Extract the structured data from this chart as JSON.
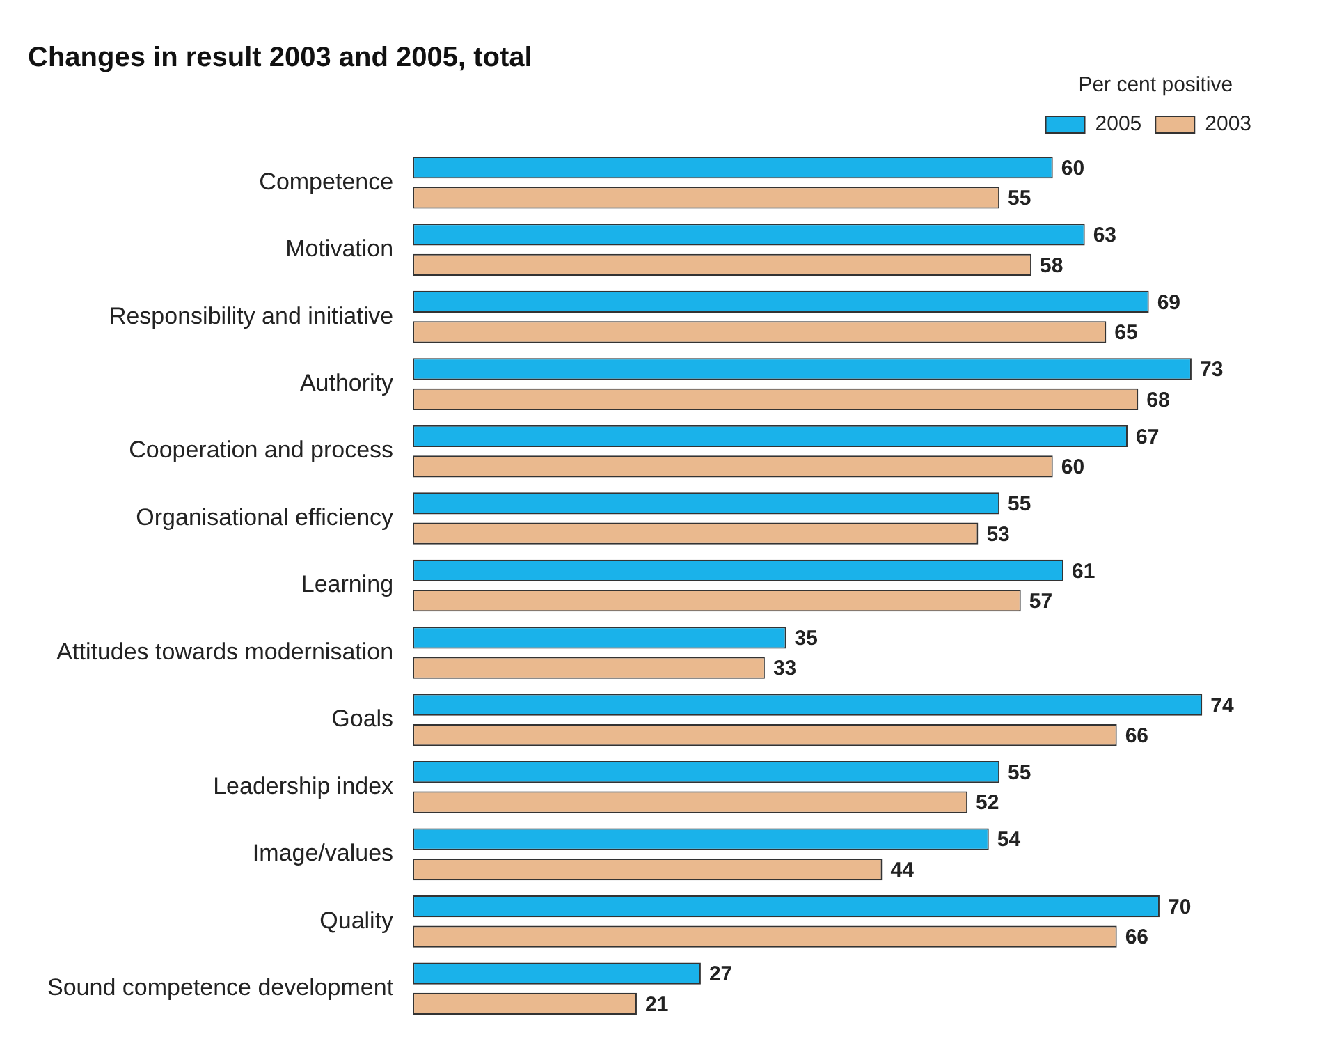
{
  "chart_data": {
    "type": "bar",
    "orientation": "horizontal",
    "title": "Changes in result 2003 and 2005, total",
    "legend_title": "Per cent positive",
    "legend": "top right",
    "data_labels": true,
    "grid": false,
    "categories": [
      "Competence",
      "Motivation",
      "Responsibility and initiative",
      "Authority",
      "Cooperation and process",
      "Organisational efficiency",
      "Learning",
      "Attitudes towards modernisation",
      "Goals",
      "Leadership index",
      "Image/values",
      "Quality",
      "Sound competence development"
    ],
    "series": [
      {
        "name": "2005",
        "color": "#1ab2ea",
        "values": [
          60,
          63,
          69,
          73,
          67,
          55,
          61,
          35,
          74,
          55,
          54,
          70,
          27
        ]
      },
      {
        "name": "2003",
        "color": "#eab98e",
        "values": [
          55,
          58,
          65,
          68,
          60,
          53,
          57,
          33,
          66,
          52,
          44,
          66,
          21
        ]
      }
    ]
  }
}
